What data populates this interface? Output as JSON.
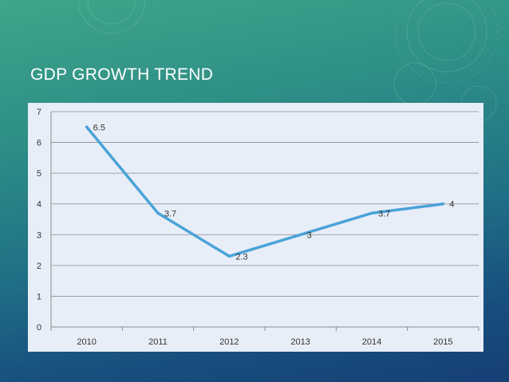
{
  "slide": {
    "title": "GDP GROWTH TREND"
  },
  "colors": {
    "line": "#4aa3d8",
    "plot_bg": "#e8eef8",
    "grid": "#8c8c8c"
  },
  "chart_data": {
    "type": "line",
    "title": "",
    "xlabel": "",
    "ylabel": "",
    "categories": [
      "2010",
      "2011",
      "2012",
      "2013",
      "2014",
      "2015"
    ],
    "series": [
      {
        "name": "GDP Growth",
        "values": [
          6.5,
          3.7,
          2.3,
          3,
          3.7,
          4
        ]
      }
    ],
    "data_labels": [
      "6.5",
      "3.7",
      "2.3",
      "3",
      "3.7",
      "4"
    ],
    "ylim": [
      0,
      7
    ],
    "yticks": [
      "0",
      "1",
      "2",
      "3",
      "4",
      "5",
      "6",
      "7"
    ],
    "grid": true,
    "legend": "none"
  }
}
